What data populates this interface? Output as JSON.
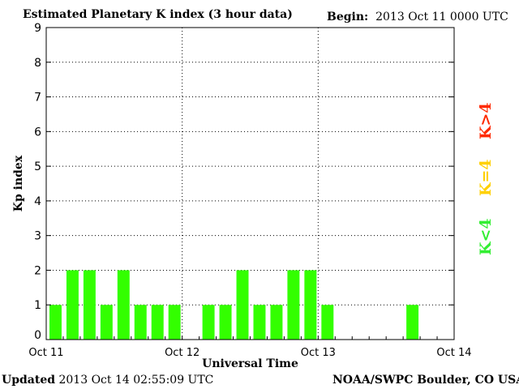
{
  "header": {
    "title": "Estimated Planetary K index (3 hour data)",
    "begin_label": "Begin:",
    "begin_value": "2013 Oct 11 0000 UTC"
  },
  "footer": {
    "updated_label": "Updated",
    "updated_value": "2013 Oct 14 02:55:09 UTC",
    "source": "NOAA/SWPC Boulder, CO USA"
  },
  "side_legend": [
    {
      "label": "K>4",
      "color": "#ff2a00"
    },
    {
      "label": "K=4",
      "color": "#ffd000"
    },
    {
      "label": "K<4",
      "color": "#33ee33"
    }
  ],
  "chart_data": {
    "type": "bar",
    "xlabel": "Universal Time",
    "ylabel": "Kp index",
    "ylim": [
      0,
      9
    ],
    "yticks": [
      0,
      1,
      2,
      3,
      4,
      5,
      6,
      7,
      8,
      9
    ],
    "x_ticks": [
      "Oct 11",
      "Oct 12",
      "Oct 13",
      "Oct 14"
    ],
    "bin_hours": 3,
    "bar_color": "#33ff00",
    "grid": true,
    "values": [
      1,
      2,
      2,
      1,
      2,
      1,
      1,
      1,
      null,
      1,
      1,
      2,
      1,
      1,
      2,
      2,
      1,
      null,
      null,
      null,
      null,
      1,
      null,
      null
    ]
  }
}
